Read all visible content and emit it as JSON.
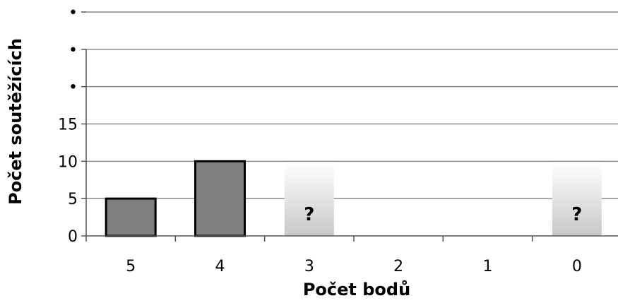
{
  "chart_data": {
    "type": "bar",
    "xlabel": "Počet bodů",
    "ylabel": "Počet soutěžících",
    "categories": [
      "5",
      "4",
      "3",
      "2",
      "1",
      "0"
    ],
    "values": [
      5,
      10,
      null,
      null,
      null,
      null
    ],
    "unknown_markers": [
      {
        "category": "3",
        "label": "?"
      },
      {
        "category": "0",
        "label": "?"
      }
    ],
    "y_tick_labels": [
      "0",
      "5",
      "10",
      "15",
      "•",
      "•",
      "•"
    ],
    "y_ticks": [
      0,
      5,
      10,
      15,
      20,
      25,
      30
    ],
    "ylim": [
      0,
      30
    ],
    "grid": true,
    "colors": {
      "bar_fill": "#808080",
      "bar_stroke": "#000000",
      "grid": "#8c8c8c",
      "unknown_gradient_top": "#ffffff",
      "unknown_gradient_bottom": "#c8c8c8"
    }
  }
}
